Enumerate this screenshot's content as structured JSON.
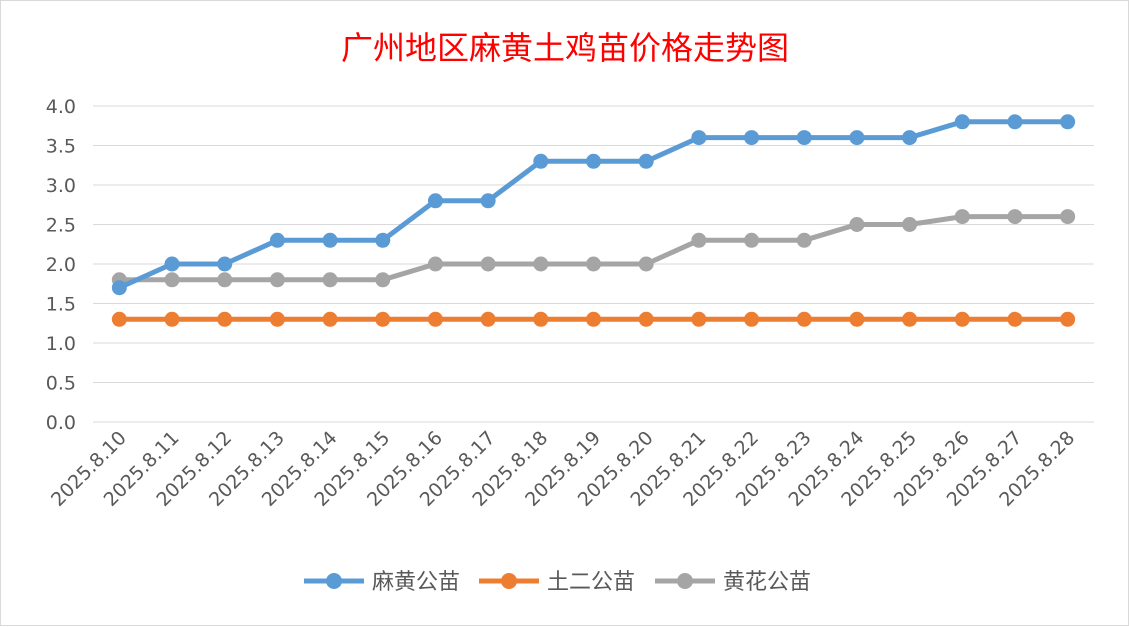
{
  "chart_data": {
    "type": "line",
    "title": "广州地区麻黄土鸡苗价格走势图",
    "xlabel": "",
    "ylabel": "",
    "ylim": [
      0,
      4
    ],
    "ytick_step": 0.5,
    "ytick_labels": [
      "0.0",
      "0.5",
      "1.0",
      "1.5",
      "2.0",
      "2.5",
      "3.0",
      "3.5",
      "4.0"
    ],
    "grid": true,
    "legend_position": "bottom",
    "categories": [
      "2025.8.10",
      "2025.8.11",
      "2025.8.12",
      "2025.8.13",
      "2025.8.14",
      "2025.8.15",
      "2025.8.16",
      "2025.8.17",
      "2025.8.18",
      "2025.8.19",
      "2025.8.20",
      "2025.8.21",
      "2025.8.22",
      "2025.8.23",
      "2025.8.24",
      "2025.8.25",
      "2025.8.26",
      "2025.8.27",
      "2025.8.28"
    ],
    "series": [
      {
        "name": "麻黄公苗",
        "color": "#5b9bd5",
        "values": [
          1.7,
          2.0,
          2.0,
          2.3,
          2.3,
          2.3,
          2.8,
          2.8,
          3.3,
          3.3,
          3.3,
          3.6,
          3.6,
          3.6,
          3.6,
          3.6,
          3.8,
          3.8,
          3.8
        ]
      },
      {
        "name": "土二公苗",
        "color": "#ed7d31",
        "values": [
          1.3,
          1.3,
          1.3,
          1.3,
          1.3,
          1.3,
          1.3,
          1.3,
          1.3,
          1.3,
          1.3,
          1.3,
          1.3,
          1.3,
          1.3,
          1.3,
          1.3,
          1.3,
          1.3
        ]
      },
      {
        "name": "黄花公苗",
        "color": "#a5a5a5",
        "values": [
          1.8,
          1.8,
          1.8,
          1.8,
          1.8,
          1.8,
          2.0,
          2.0,
          2.0,
          2.0,
          2.0,
          2.3,
          2.3,
          2.3,
          2.5,
          2.5,
          2.6,
          2.6,
          2.6
        ]
      }
    ]
  }
}
